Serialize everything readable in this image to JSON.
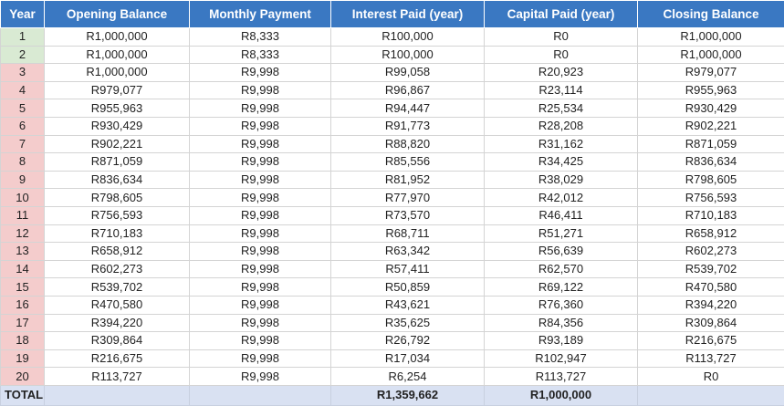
{
  "table": {
    "header": [
      "Year",
      "Opening Balance",
      "Monthly Payment",
      "Interest Paid (year)",
      "Capital Paid (year)",
      "Closing Balance"
    ],
    "rows": [
      [
        1,
        "R1,000,000",
        "R8,333",
        "R100,000",
        "R0",
        "R1,000,000"
      ],
      [
        2,
        "R1,000,000",
        "R8,333",
        "R100,000",
        "R0",
        "R1,000,000"
      ],
      [
        3,
        "R1,000,000",
        "R9,998",
        "R99,058",
        "R20,923",
        "R979,077"
      ],
      [
        4,
        "R979,077",
        "R9,998",
        "R96,867",
        "R23,114",
        "R955,963"
      ],
      [
        5,
        "R955,963",
        "R9,998",
        "R94,447",
        "R25,534",
        "R930,429"
      ],
      [
        6,
        "R930,429",
        "R9,998",
        "R91,773",
        "R28,208",
        "R902,221"
      ],
      [
        7,
        "R902,221",
        "R9,998",
        "R88,820",
        "R31,162",
        "R871,059"
      ],
      [
        8,
        "R871,059",
        "R9,998",
        "R85,556",
        "R34,425",
        "R836,634"
      ],
      [
        9,
        "R836,634",
        "R9,998",
        "R81,952",
        "R38,029",
        "R798,605"
      ],
      [
        10,
        "R798,605",
        "R9,998",
        "R77,970",
        "R42,012",
        "R756,593"
      ],
      [
        11,
        "R756,593",
        "R9,998",
        "R73,570",
        "R46,411",
        "R710,183"
      ],
      [
        12,
        "R710,183",
        "R9,998",
        "R68,711",
        "R51,271",
        "R658,912"
      ],
      [
        13,
        "R658,912",
        "R9,998",
        "R63,342",
        "R56,639",
        "R602,273"
      ],
      [
        14,
        "R602,273",
        "R9,998",
        "R57,411",
        "R62,570",
        "R539,702"
      ],
      [
        15,
        "R539,702",
        "R9,998",
        "R50,859",
        "R69,122",
        "R470,580"
      ],
      [
        16,
        "R470,580",
        "R9,998",
        "R43,621",
        "R76,360",
        "R394,220"
      ],
      [
        17,
        "R394,220",
        "R9,998",
        "R35,625",
        "R84,356",
        "R309,864"
      ],
      [
        18,
        "R309,864",
        "R9,998",
        "R26,792",
        "R93,189",
        "R216,675"
      ],
      [
        19,
        "R216,675",
        "R9,998",
        "R17,034",
        "R102,947",
        "R113,727"
      ],
      [
        20,
        "R113,727",
        "R9,998",
        "R6,254",
        "R113,727",
        "R0"
      ]
    ],
    "total": {
      "label": "TOTAL",
      "interest": "R1,359,662",
      "capital": "R1,000,000"
    }
  }
}
